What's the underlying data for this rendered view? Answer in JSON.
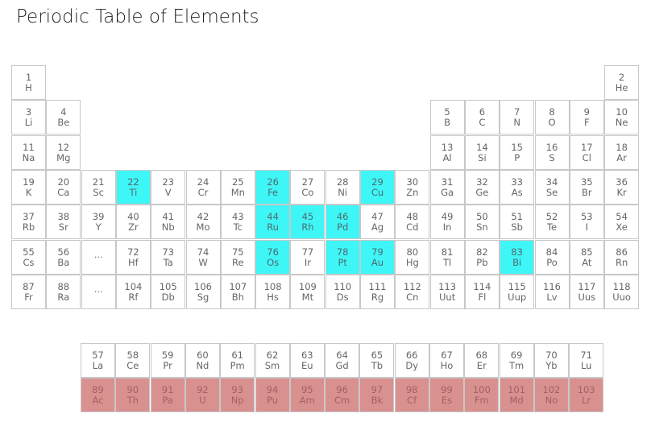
{
  "title": "Periodic Table of Elements",
  "colors": {
    "highlight": "#3ff6f6",
    "actinide": "#d99190",
    "border": "#c8c8c8"
  },
  "main_table": [
    {
      "col": 1,
      "row": 1,
      "num": "1",
      "sym": "H"
    },
    {
      "col": 18,
      "row": 1,
      "num": "2",
      "sym": "He"
    },
    {
      "col": 1,
      "row": 2,
      "num": "3",
      "sym": "Li"
    },
    {
      "col": 2,
      "row": 2,
      "num": "4",
      "sym": "Be"
    },
    {
      "col": 13,
      "row": 2,
      "num": "5",
      "sym": "B"
    },
    {
      "col": 14,
      "row": 2,
      "num": "6",
      "sym": "C"
    },
    {
      "col": 15,
      "row": 2,
      "num": "7",
      "sym": "N"
    },
    {
      "col": 16,
      "row": 2,
      "num": "8",
      "sym": "O"
    },
    {
      "col": 17,
      "row": 2,
      "num": "9",
      "sym": "F"
    },
    {
      "col": 18,
      "row": 2,
      "num": "10",
      "sym": "Ne"
    },
    {
      "col": 1,
      "row": 3,
      "num": "11",
      "sym": "Na"
    },
    {
      "col": 2,
      "row": 3,
      "num": "12",
      "sym": "Mg"
    },
    {
      "col": 13,
      "row": 3,
      "num": "13",
      "sym": "Al"
    },
    {
      "col": 14,
      "row": 3,
      "num": "14",
      "sym": "Si"
    },
    {
      "col": 15,
      "row": 3,
      "num": "15",
      "sym": "P"
    },
    {
      "col": 16,
      "row": 3,
      "num": "16",
      "sym": "S"
    },
    {
      "col": 17,
      "row": 3,
      "num": "17",
      "sym": "Cl"
    },
    {
      "col": 18,
      "row": 3,
      "num": "18",
      "sym": "Ar"
    },
    {
      "col": 1,
      "row": 4,
      "num": "19",
      "sym": "K"
    },
    {
      "col": 2,
      "row": 4,
      "num": "20",
      "sym": "Ca"
    },
    {
      "col": 3,
      "row": 4,
      "num": "21",
      "sym": "Sc"
    },
    {
      "col": 4,
      "row": 4,
      "num": "22",
      "sym": "Ti",
      "hl": true
    },
    {
      "col": 5,
      "row": 4,
      "num": "23",
      "sym": "V"
    },
    {
      "col": 6,
      "row": 4,
      "num": "24",
      "sym": "Cr"
    },
    {
      "col": 7,
      "row": 4,
      "num": "25",
      "sym": "Mn"
    },
    {
      "col": 8,
      "row": 4,
      "num": "26",
      "sym": "Fe",
      "hl": true
    },
    {
      "col": 9,
      "row": 4,
      "num": "27",
      "sym": "Co"
    },
    {
      "col": 10,
      "row": 4,
      "num": "28",
      "sym": "Ni"
    },
    {
      "col": 11,
      "row": 4,
      "num": "29",
      "sym": "Cu",
      "hl": true
    },
    {
      "col": 12,
      "row": 4,
      "num": "30",
      "sym": "Zn"
    },
    {
      "col": 13,
      "row": 4,
      "num": "31",
      "sym": "Ga"
    },
    {
      "col": 14,
      "row": 4,
      "num": "32",
      "sym": "Ge"
    },
    {
      "col": 15,
      "row": 4,
      "num": "33",
      "sym": "As"
    },
    {
      "col": 16,
      "row": 4,
      "num": "34",
      "sym": "Se"
    },
    {
      "col": 17,
      "row": 4,
      "num": "35",
      "sym": "Br"
    },
    {
      "col": 18,
      "row": 4,
      "num": "36",
      "sym": "Kr"
    },
    {
      "col": 1,
      "row": 5,
      "num": "37",
      "sym": "Rb"
    },
    {
      "col": 2,
      "row": 5,
      "num": "38",
      "sym": "Sr"
    },
    {
      "col": 3,
      "row": 5,
      "num": "39",
      "sym": "Y"
    },
    {
      "col": 4,
      "row": 5,
      "num": "40",
      "sym": "Zr"
    },
    {
      "col": 5,
      "row": 5,
      "num": "41",
      "sym": "Nb"
    },
    {
      "col": 6,
      "row": 5,
      "num": "42",
      "sym": "Mo"
    },
    {
      "col": 7,
      "row": 5,
      "num": "43",
      "sym": "Tc"
    },
    {
      "col": 8,
      "row": 5,
      "num": "44",
      "sym": "Ru",
      "hl": true
    },
    {
      "col": 9,
      "row": 5,
      "num": "45",
      "sym": "Rh",
      "hl": true
    },
    {
      "col": 10,
      "row": 5,
      "num": "46",
      "sym": "Pd",
      "hl": true
    },
    {
      "col": 11,
      "row": 5,
      "num": "47",
      "sym": "Ag"
    },
    {
      "col": 12,
      "row": 5,
      "num": "48",
      "sym": "Cd"
    },
    {
      "col": 13,
      "row": 5,
      "num": "49",
      "sym": "In"
    },
    {
      "col": 14,
      "row": 5,
      "num": "50",
      "sym": "Sn"
    },
    {
      "col": 15,
      "row": 5,
      "num": "51",
      "sym": "Sb"
    },
    {
      "col": 16,
      "row": 5,
      "num": "52",
      "sym": "Te"
    },
    {
      "col": 17,
      "row": 5,
      "num": "53",
      "sym": "I"
    },
    {
      "col": 18,
      "row": 5,
      "num": "54",
      "sym": "Xe"
    },
    {
      "col": 1,
      "row": 6,
      "num": "55",
      "sym": "Cs"
    },
    {
      "col": 2,
      "row": 6,
      "num": "56",
      "sym": "Ba"
    },
    {
      "col": 3,
      "row": 6,
      "placeholder": "..."
    },
    {
      "col": 4,
      "row": 6,
      "num": "72",
      "sym": "Hf"
    },
    {
      "col": 5,
      "row": 6,
      "num": "73",
      "sym": "Ta"
    },
    {
      "col": 6,
      "row": 6,
      "num": "74",
      "sym": "W"
    },
    {
      "col": 7,
      "row": 6,
      "num": "75",
      "sym": "Re"
    },
    {
      "col": 8,
      "row": 6,
      "num": "76",
      "sym": "Os",
      "hl": true
    },
    {
      "col": 9,
      "row": 6,
      "num": "77",
      "sym": "Ir"
    },
    {
      "col": 10,
      "row": 6,
      "num": "78",
      "sym": "Pt",
      "hl": true
    },
    {
      "col": 11,
      "row": 6,
      "num": "79",
      "sym": "Au",
      "hl": true
    },
    {
      "col": 12,
      "row": 6,
      "num": "80",
      "sym": "Hg"
    },
    {
      "col": 13,
      "row": 6,
      "num": "81",
      "sym": "Tl"
    },
    {
      "col": 14,
      "row": 6,
      "num": "82",
      "sym": "Pb"
    },
    {
      "col": 15,
      "row": 6,
      "num": "83",
      "sym": "Bi",
      "hl": true
    },
    {
      "col": 16,
      "row": 6,
      "num": "84",
      "sym": "Po"
    },
    {
      "col": 17,
      "row": 6,
      "num": "85",
      "sym": "At"
    },
    {
      "col": 18,
      "row": 6,
      "num": "86",
      "sym": "Rn"
    },
    {
      "col": 1,
      "row": 7,
      "num": "87",
      "sym": "Fr"
    },
    {
      "col": 2,
      "row": 7,
      "num": "88",
      "sym": "Ra"
    },
    {
      "col": 3,
      "row": 7,
      "placeholder": "..."
    },
    {
      "col": 4,
      "row": 7,
      "num": "104",
      "sym": "Rf"
    },
    {
      "col": 5,
      "row": 7,
      "num": "105",
      "sym": "Db"
    },
    {
      "col": 6,
      "row": 7,
      "num": "106",
      "sym": "Sg"
    },
    {
      "col": 7,
      "row": 7,
      "num": "107",
      "sym": "Bh"
    },
    {
      "col": 8,
      "row": 7,
      "num": "108",
      "sym": "Hs"
    },
    {
      "col": 9,
      "row": 7,
      "num": "109",
      "sym": "Mt"
    },
    {
      "col": 10,
      "row": 7,
      "num": "110",
      "sym": "Ds"
    },
    {
      "col": 11,
      "row": 7,
      "num": "111",
      "sym": "Rg"
    },
    {
      "col": 12,
      "row": 7,
      "num": "112",
      "sym": "Cn"
    },
    {
      "col": 13,
      "row": 7,
      "num": "113",
      "sym": "Uut"
    },
    {
      "col": 14,
      "row": 7,
      "num": "114",
      "sym": "Fl"
    },
    {
      "col": 15,
      "row": 7,
      "num": "115",
      "sym": "Uup"
    },
    {
      "col": 16,
      "row": 7,
      "num": "116",
      "sym": "Lv"
    },
    {
      "col": 17,
      "row": 7,
      "num": "117",
      "sym": "Uus"
    },
    {
      "col": 18,
      "row": 7,
      "num": "118",
      "sym": "Uuo"
    }
  ],
  "lanthanides": [
    {
      "num": "57",
      "sym": "La"
    },
    {
      "num": "58",
      "sym": "Ce"
    },
    {
      "num": "59",
      "sym": "Pr"
    },
    {
      "num": "60",
      "sym": "Nd"
    },
    {
      "num": "61",
      "sym": "Pm"
    },
    {
      "num": "62",
      "sym": "Sm"
    },
    {
      "num": "63",
      "sym": "Eu"
    },
    {
      "num": "64",
      "sym": "Gd"
    },
    {
      "num": "65",
      "sym": "Tb"
    },
    {
      "num": "66",
      "sym": "Dy"
    },
    {
      "num": "67",
      "sym": "Ho"
    },
    {
      "num": "68",
      "sym": "Er"
    },
    {
      "num": "69",
      "sym": "Tm"
    },
    {
      "num": "70",
      "sym": "Yb"
    },
    {
      "num": "71",
      "sym": "Lu"
    }
  ],
  "actinides": [
    {
      "num": "89",
      "sym": "Ac"
    },
    {
      "num": "90",
      "sym": "Th"
    },
    {
      "num": "91",
      "sym": "Pa"
    },
    {
      "num": "92",
      "sym": "U"
    },
    {
      "num": "93",
      "sym": "Np"
    },
    {
      "num": "94",
      "sym": "Pu"
    },
    {
      "num": "95",
      "sym": "Am"
    },
    {
      "num": "96",
      "sym": "Cm"
    },
    {
      "num": "97",
      "sym": "Bk"
    },
    {
      "num": "98",
      "sym": "Cf"
    },
    {
      "num": "99",
      "sym": "Es"
    },
    {
      "num": "100",
      "sym": "Fm"
    },
    {
      "num": "101",
      "sym": "Md"
    },
    {
      "num": "102",
      "sym": "No"
    },
    {
      "num": "103",
      "sym": "Lr"
    }
  ]
}
